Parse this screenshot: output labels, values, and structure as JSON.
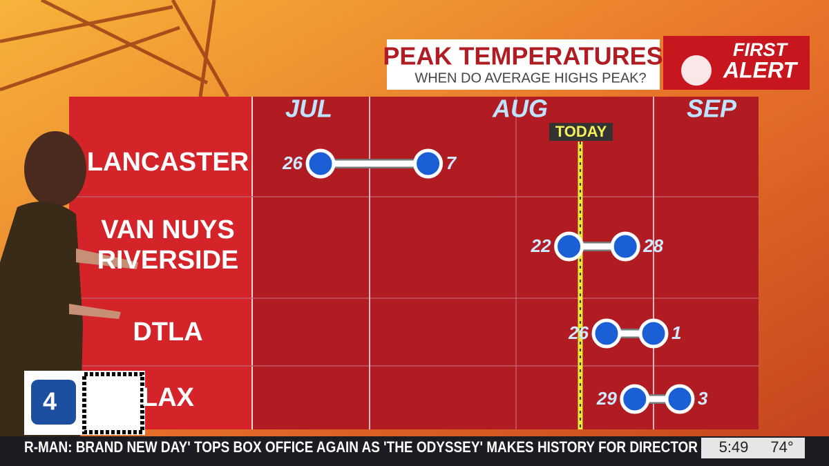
{
  "chart_data": {
    "type": "dumbbell",
    "title": "PEAK TEMPERATURES",
    "subtitle": "WHEN DO AVERAGE HIGHS PEAK?",
    "categories": [
      "JUL",
      "AUG",
      "SEP"
    ],
    "today_label": "TODAY",
    "dot_color": "#1a5fd6",
    "rows": [
      {
        "labels": [
          "LANCASTER"
        ],
        "start_month": "JUL",
        "start_day": 26,
        "end_month": "AUG",
        "end_day": 7
      },
      {
        "labels": [
          "VAN NUYS",
          "RIVERSIDE"
        ],
        "start_month": "AUG",
        "start_day": 22,
        "end_month": "AUG",
        "end_day": 28
      },
      {
        "labels": [
          "DTLA"
        ],
        "start_month": "AUG",
        "start_day": 26,
        "end_month": "SEP",
        "end_day": 1
      },
      {
        "labels": [
          "LAX"
        ],
        "start_month": "AUG",
        "start_day": 29,
        "end_month": "SEP",
        "end_day": 3
      }
    ]
  },
  "branding": {
    "alert": [
      "FIRST",
      "ALERT"
    ],
    "channel": "4"
  },
  "ticker": {
    "headline": "R-MAN: BRAND NEW DAY' TOPS BOX OFFICE AGAIN AS 'THE ODYSSEY' MAKES HISTORY FOR DIRECTOR",
    "time": "5:49",
    "temperature": "74°"
  }
}
